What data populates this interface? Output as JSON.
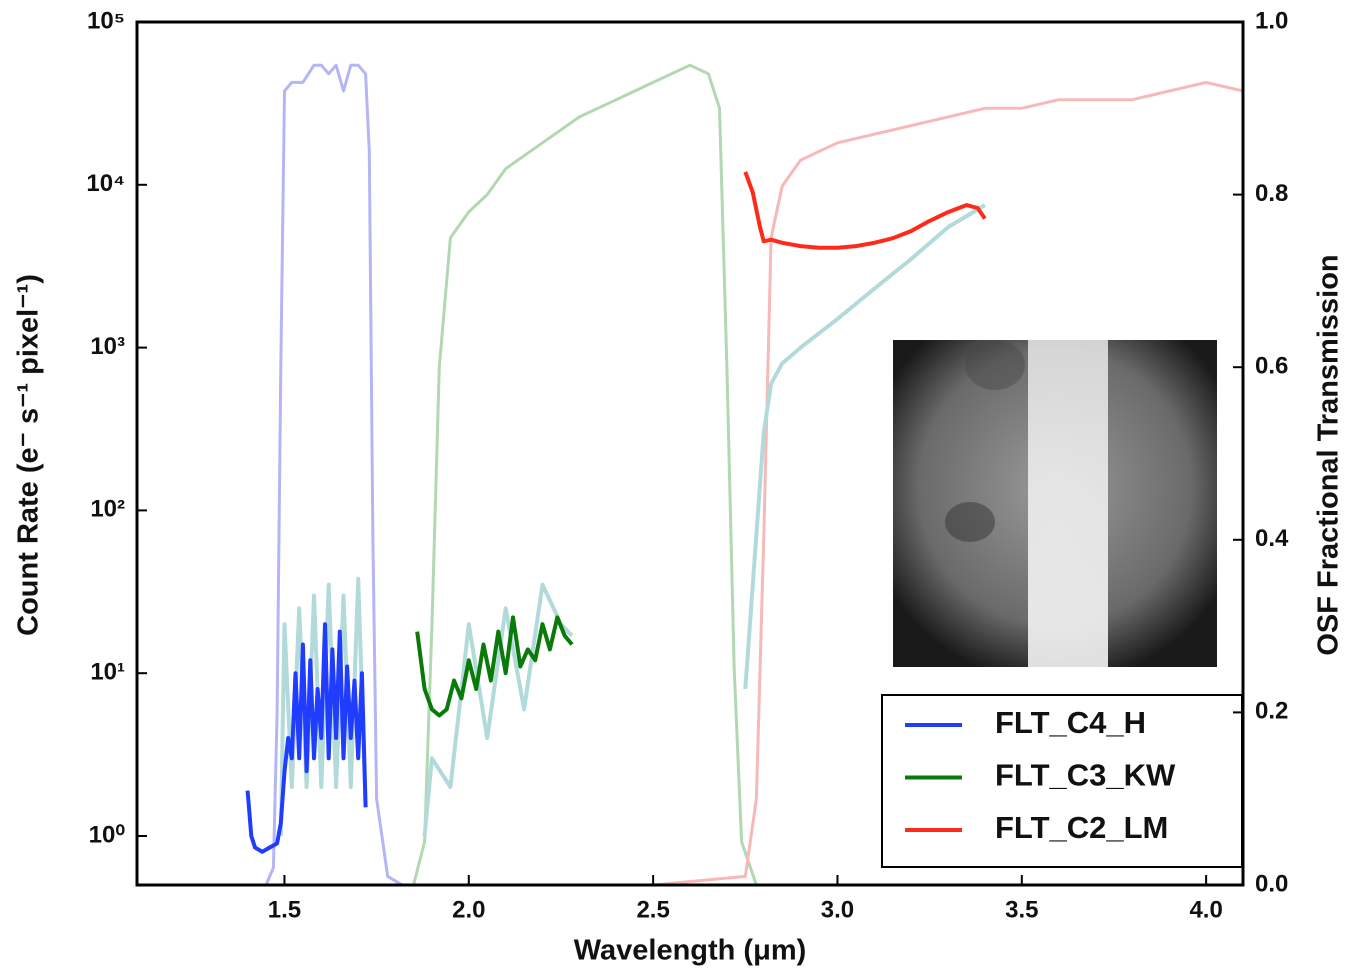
{
  "chart_data": {
    "type": "line",
    "x_label": "Wavelength (μm)",
    "y_label": "Count Rate (e⁻ s⁻¹ pixel⁻¹)",
    "y2_label": "OSF Fractional Transmission",
    "xlim": [
      1.1,
      4.1
    ],
    "ylim": [
      0.5,
      100000
    ],
    "y2lim": [
      0,
      1
    ],
    "ylog": true,
    "grid": false,
    "legend": "lower right",
    "xticks": [
      1.5,
      {
        "value": 2,
        "label": "2.0"
      },
      2.5,
      {
        "value": 3,
        "label": "3.0"
      },
      3.5,
      {
        "value": 4,
        "label": "4.0"
      }
    ],
    "yticks": [
      {
        "value": 1,
        "label": "10⁰"
      },
      {
        "value": 10,
        "label": "10¹"
      },
      {
        "value": 100,
        "label": "10²"
      },
      {
        "value": 1000,
        "label": "10³"
      },
      {
        "value": 10000,
        "label": "10⁴"
      },
      {
        "value": 100000,
        "label": "10⁵"
      }
    ],
    "y2ticks": [
      {
        "value": 0,
        "label": "0.0"
      },
      0.2,
      0.4,
      0.6,
      0.8,
      {
        "value": 1,
        "label": "1.0"
      }
    ],
    "series": [
      {
        "color": "#b5b5f5",
        "axis": "y2",
        "width": 3,
        "x": [
          1.45,
          1.47,
          1.48,
          1.49,
          1.5,
          1.52,
          1.55,
          1.58,
          1.6,
          1.62,
          1.64,
          1.66,
          1.68,
          1.7,
          1.72,
          1.73,
          1.74,
          1.75,
          1.78,
          1.82
        ],
        "values": [
          0,
          0.02,
          0.2,
          0.6,
          0.92,
          0.93,
          0.93,
          0.95,
          0.95,
          0.94,
          0.95,
          0.92,
          0.95,
          0.95,
          0.94,
          0.85,
          0.4,
          0.1,
          0.01,
          0
        ]
      },
      {
        "color": "#b2d8b2",
        "axis": "y2",
        "width": 3,
        "x": [
          1.85,
          1.88,
          1.9,
          1.92,
          1.95,
          2.0,
          2.05,
          2.1,
          2.2,
          2.3,
          2.4,
          2.5,
          2.6,
          2.65,
          2.68,
          2.7,
          2.72,
          2.74,
          2.78
        ],
        "values": [
          0,
          0.05,
          0.3,
          0.6,
          0.75,
          0.78,
          0.8,
          0.83,
          0.86,
          0.89,
          0.91,
          0.93,
          0.95,
          0.94,
          0.9,
          0.6,
          0.25,
          0.05,
          0
        ]
      },
      {
        "color": "#f7b8b8",
        "axis": "y2",
        "width": 3,
        "x": [
          1.95,
          2.5,
          2.75,
          2.78,
          2.8,
          2.82,
          2.85,
          2.9,
          3.0,
          3.1,
          3.2,
          3.3,
          3.4,
          3.5,
          3.6,
          3.7,
          3.8,
          3.9,
          4.0,
          4.1
        ],
        "values": [
          0,
          0,
          0.01,
          0.1,
          0.4,
          0.75,
          0.81,
          0.84,
          0.86,
          0.87,
          0.88,
          0.89,
          0.9,
          0.9,
          0.91,
          0.91,
          0.91,
          0.92,
          0.93,
          0.92
        ]
      },
      {
        "color": "#b2dada",
        "width": 4,
        "x": [
          1.49,
          1.5,
          1.52,
          1.54,
          1.56,
          1.58,
          1.6,
          1.62,
          1.64,
          1.66,
          1.68,
          1.7,
          1.72,
          1.8,
          1.88,
          1.9,
          1.95,
          2.0,
          2.05,
          2.1,
          2.15,
          2.2,
          2.25,
          2.28,
          2.5,
          2.75,
          2.8,
          2.82,
          2.85,
          2.9,
          3.0,
          3.1,
          3.2,
          3.3,
          3.4
        ],
        "values": [
          1,
          20,
          2,
          25,
          2,
          30,
          2,
          35,
          2,
          30,
          2,
          38,
          1.5,
          null,
          1,
          3,
          2,
          20,
          4,
          25,
          6,
          35,
          20,
          17,
          null,
          8,
          300,
          600,
          800,
          1000,
          1500,
          2300,
          3500,
          5500,
          7500
        ]
      },
      {
        "name": "FLT_C4_H",
        "color": "#1f3cff",
        "width": 4,
        "x": [
          1.4,
          1.41,
          1.42,
          1.44,
          1.46,
          1.48,
          1.49,
          1.5,
          1.51,
          1.52,
          1.53,
          1.54,
          1.55,
          1.56,
          1.57,
          1.58,
          1.59,
          1.6,
          1.61,
          1.62,
          1.63,
          1.64,
          1.65,
          1.66,
          1.67,
          1.68,
          1.69,
          1.7,
          1.71,
          1.72
        ],
        "values": [
          1.9,
          1.0,
          0.85,
          0.8,
          0.85,
          0.9,
          1.2,
          2.5,
          4,
          3,
          10,
          3,
          15,
          2.5,
          12,
          3,
          8,
          4,
          20,
          3,
          14,
          4,
          18,
          3,
          11,
          4,
          9,
          3,
          10,
          1.5
        ]
      },
      {
        "name": "FLT_C3_KW",
        "color": "#0a7a0a",
        "width": 4,
        "x": [
          1.86,
          1.88,
          1.9,
          1.92,
          1.94,
          1.96,
          1.98,
          2.0,
          2.02,
          2.04,
          2.06,
          2.08,
          2.1,
          2.12,
          2.14,
          2.16,
          2.18,
          2.2,
          2.22,
          2.24,
          2.26,
          2.28
        ],
        "values": [
          18,
          8,
          6,
          5.5,
          6,
          9,
          7,
          12,
          8,
          15,
          9,
          18,
          10,
          22,
          11,
          14,
          12,
          20,
          14,
          22,
          17,
          15
        ]
      },
      {
        "name": "FLT_C2_LM",
        "color": "#ff2a1a",
        "width": 4,
        "x": [
          2.75,
          2.77,
          2.79,
          2.8,
          2.82,
          2.85,
          2.9,
          2.95,
          3.0,
          3.05,
          3.1,
          3.15,
          3.2,
          3.25,
          3.3,
          3.35,
          3.38,
          3.4
        ],
        "values": [
          12000,
          9000,
          5500,
          4500,
          4600,
          4400,
          4200,
          4100,
          4100,
          4200,
          4400,
          4700,
          5200,
          6000,
          6800,
          7500,
          7200,
          6200
        ]
      }
    ]
  }
}
